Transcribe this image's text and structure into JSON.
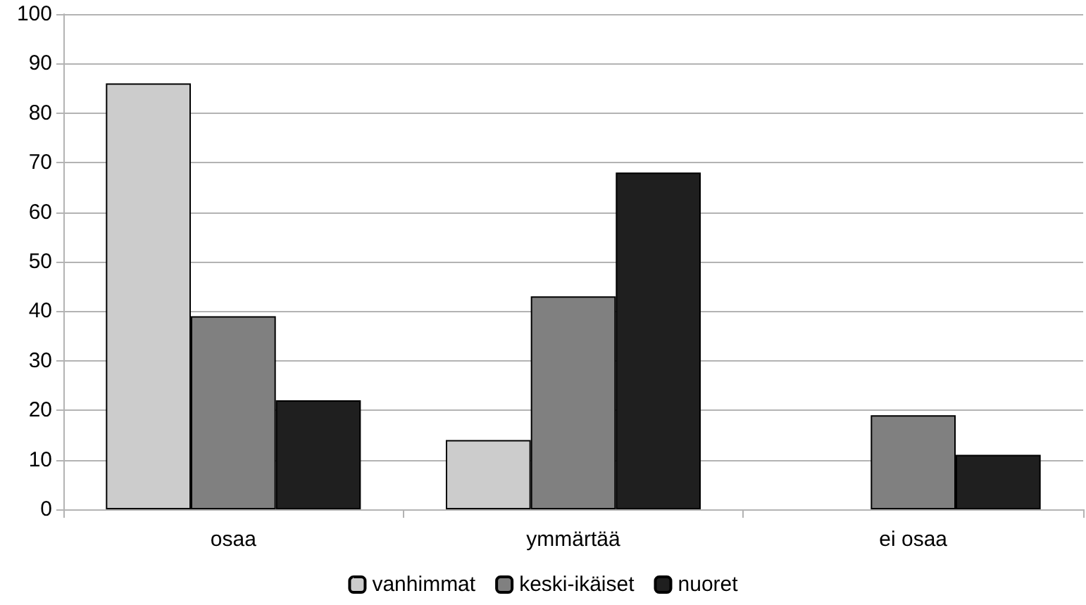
{
  "chart_data": {
    "type": "bar",
    "categories": [
      "osaa",
      "ymmärtää",
      "ei osaa"
    ],
    "series": [
      {
        "name": "vanhimmat",
        "color": "#cccccc",
        "values": [
          86,
          14,
          null
        ]
      },
      {
        "name": "keski-ikäiset",
        "color": "#808080",
        "values": [
          39,
          43,
          19
        ]
      },
      {
        "name": "nuoret",
        "color": "#1f1f1f",
        "values": [
          22,
          68,
          11
        ]
      }
    ],
    "ylim": [
      0,
      100
    ],
    "yticks": [
      0,
      10,
      20,
      30,
      40,
      50,
      60,
      70,
      80,
      90,
      100
    ],
    "grid": "y",
    "legend": "bottom"
  }
}
